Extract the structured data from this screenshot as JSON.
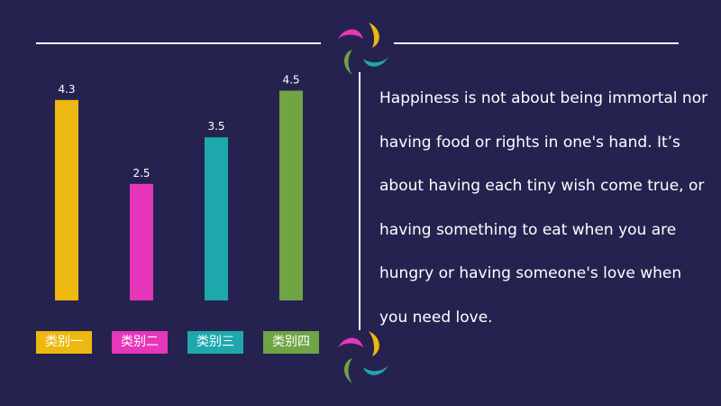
{
  "chart_data": {
    "type": "bar",
    "categories": [
      "类别一",
      "类别二",
      "类别三",
      "类别四"
    ],
    "values": [
      4.3,
      2.5,
      3.5,
      4.5
    ],
    "value_labels": [
      "4.3",
      "2.5",
      "3.5",
      "4.5"
    ],
    "colors": [
      "#EDB810",
      "#E636B9",
      "#1FA8AC",
      "#70A444"
    ],
    "ylim": [
      0,
      4.8
    ],
    "grid": false,
    "title": "",
    "xlabel": "",
    "ylabel": ""
  },
  "quote": {
    "text": "Happiness is not about being immortal nor having food or rights in one's hand. It’s about having each tiny wish come true, or having something to eat when you are hungry or having someone's love when you need love."
  },
  "decor": {
    "logo_colors": [
      "#E636B9",
      "#EDB810",
      "#1FA8AC",
      "#70A444"
    ]
  }
}
